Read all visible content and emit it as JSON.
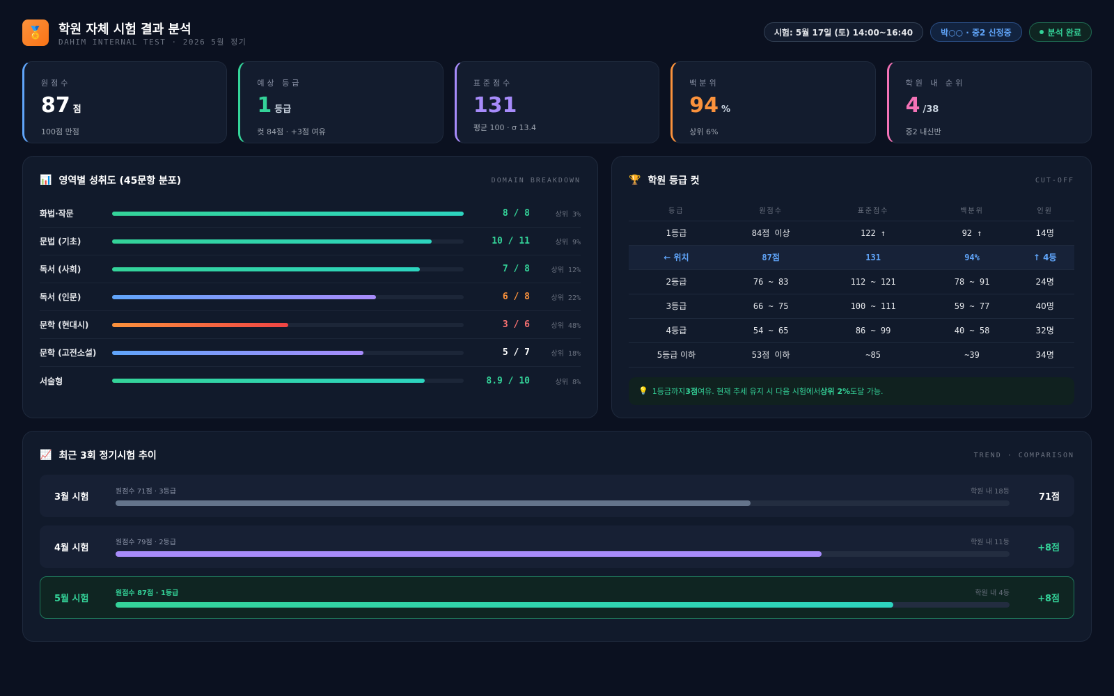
{
  "header": {
    "icon": "🏅",
    "title": "학원 자체 시험 결과 분석",
    "subtitle": "DAHIM INTERNAL TEST · 2026 5월 정기",
    "tags": [
      "시험: 5월 17일 (토) 14:00~16:40",
      "박○○ · 중2 신정중",
      "분석 완료"
    ]
  },
  "stats": [
    {
      "label": "원점수",
      "value": 87,
      "unit": "점",
      "note": {
        "value": 100,
        "label": "100점 만점"
      },
      "accent": "#60a5fa",
      "color": "#ffffff"
    },
    {
      "label": "예상 등급",
      "value": 1,
      "unit": "등급",
      "note": "컷 84점 · +3점 여유",
      "accent": "#34d399",
      "color": "#34d399"
    },
    {
      "label": "표준점수",
      "value": 131,
      "note": "평균 100 · σ 13.4",
      "accent": "#a78bfa",
      "color": "#a78bfa"
    },
    {
      "label": "백분위",
      "value": 94,
      "unit": "%",
      "note": "상위 6%",
      "accent": "#fb923c",
      "color": "#fb923c"
    },
    {
      "label": "학원 내 순위",
      "value": 4,
      "unit": "/38",
      "note": "중2 내신반",
      "accent": "#f472b6",
      "color": "#f472b6"
    }
  ],
  "domains": {
    "icon": "📊",
    "title": "영역별 성취도 (45문항 분포)",
    "tag": "DOMAIN BREAKDOWN",
    "rows": [
      {
        "name": "화법·작문",
        "score": {
          "value": 8,
          "label": "8 / 8"
        },
        "max": 8,
        "rank": "상위 3%",
        "colors": [
          "#34d399",
          "#2dd4bf"
        ],
        "text_color": "#34d399"
      },
      {
        "name": "문법 (기초)",
        "score": {
          "value": 10,
          "label": "10 / 11"
        },
        "max": 11,
        "rank": "상위 9%",
        "colors": [
          "#34d399",
          "#2dd4bf"
        ],
        "text_color": "#34d399"
      },
      {
        "name": "독서 (사회)",
        "score": {
          "value": 7,
          "label": "7 / 8"
        },
        "max": 8,
        "rank": "상위 12%",
        "colors": [
          "#34d399",
          "#2dd4bf"
        ],
        "text_color": "#34d399"
      },
      {
        "name": "독서 (인문)",
        "score": {
          "value": 6,
          "label": "6 / 8"
        },
        "max": 8,
        "rank": "상위 22%",
        "colors": [
          "#60a5fa",
          "#a78bfa"
        ],
        "text_color": "#fb923c"
      },
      {
        "name": "문학 (현대시)",
        "score": {
          "value": 3,
          "label": "3 / 6"
        },
        "max": 6,
        "rank": "상위 48%",
        "colors": [
          "#fb923c",
          "#ef4444"
        ],
        "text_color": "#f87171"
      },
      {
        "name": "문학 (고전소설)",
        "score": {
          "value": 5,
          "label": "5 / 7"
        },
        "max": 7,
        "rank": "상위 18%",
        "colors": [
          "#60a5fa",
          "#a78bfa"
        ],
        "text_color": "#ffffff"
      },
      {
        "name": "서술형",
        "score": {
          "value": 8.9,
          "label": "8.9 / 10"
        },
        "max": 10,
        "rank": "상위 8%",
        "colors": [
          "#34d399",
          "#2dd4bf"
        ],
        "text_color": "#34d399"
      }
    ]
  },
  "grades": {
    "icon": "🏆",
    "title": "학원 등급 컷",
    "tag": "CUT-OFF",
    "columns": [
      "등급",
      "원점수",
      "표준점수",
      "백분위",
      "인원"
    ],
    "highlight_row": 1,
    "rows": [
      [
        "1등급",
        "84점 이상",
        "122 ↑",
        "92 ↑",
        "14명"
      ],
      [
        "← 위치",
        "87점",
        "131",
        "94%",
        "↑ 4등"
      ],
      [
        "2등급",
        "76 ~ 83",
        "112 ~ 121",
        "78 ~ 91",
        "24명"
      ],
      [
        "3등급",
        "66 ~ 75",
        "100 ~ 111",
        "59 ~ 77",
        "40명"
      ],
      [
        "4등급",
        "54 ~ 65",
        "86 ~ 99",
        "40 ~ 58",
        "32명"
      ],
      [
        "5등급 이하",
        "53점 이하",
        "~85",
        "~39",
        "34명"
      ]
    ],
    "tip_icon": "💡",
    "tip": [
      {
        "text": "1등급까지 "
      },
      {
        "text": "3점",
        "bold": true
      },
      {
        "text": " 여유. 현재 추세 유지 시 다음 시험에서 "
      },
      {
        "text": "상위 2%",
        "bold": true
      },
      {
        "text": " 도달 가능."
      }
    ]
  },
  "trend": {
    "icon": "📈",
    "title": "최근 3회 정기시험 추이",
    "tag": "TREND · COMPARISON",
    "rows": [
      {
        "name": "3월 시험",
        "detail": "원점수 71점 · 3등급",
        "score": 71,
        "rank": "학원 내 18등",
        "result": "71점",
        "color": "#64748b",
        "current": false
      },
      {
        "name": "4월 시험",
        "detail": "원점수 79점 · 2등급",
        "score": 79,
        "rank": "학원 내 11등",
        "result": "+8점",
        "color": "#a78bfa",
        "current": false
      },
      {
        "name": "5월 시험",
        "detail": "원점수 87점 · 1등급",
        "score": 87,
        "rank": "학원 내 4등",
        "result": "+8점",
        "color": "#34d399",
        "current": true
      }
    ]
  }
}
